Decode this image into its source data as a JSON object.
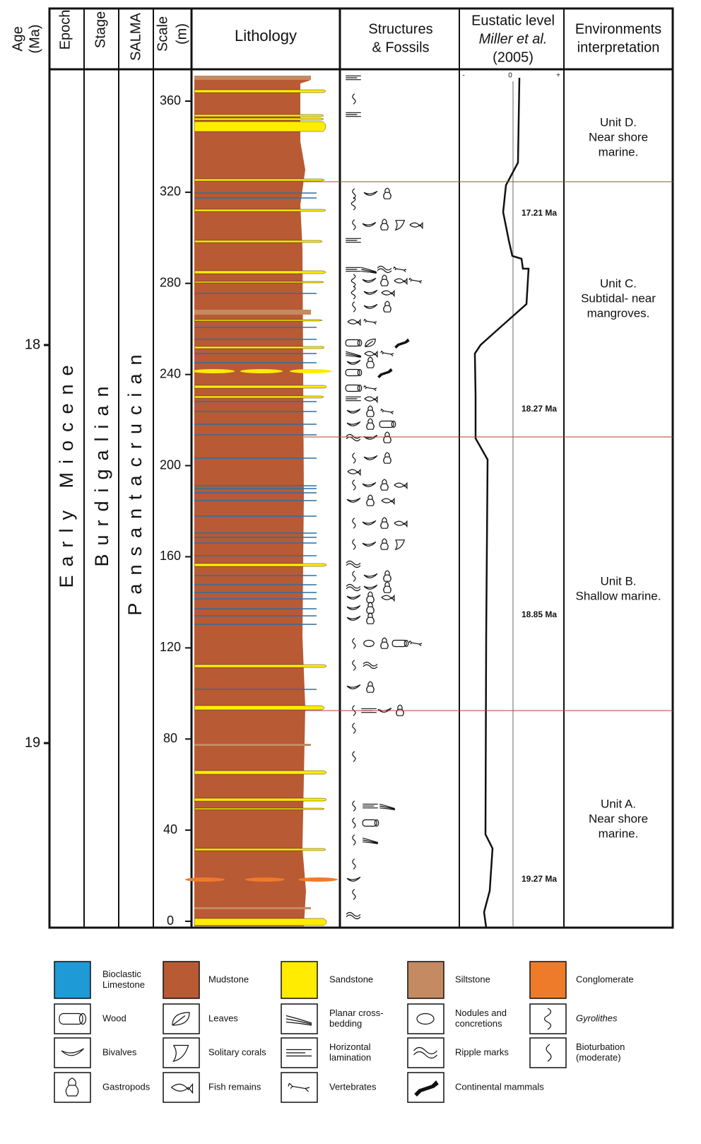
{
  "header": {
    "age": [
      "Age",
      "(Ma)"
    ],
    "epoch": "Epoch",
    "stage": "Stage",
    "salma": "SALMA",
    "scale": [
      "Scale",
      "(m)"
    ],
    "lithology": "Lithology",
    "structures": [
      "Structures",
      "& Fossils"
    ],
    "eustatic": [
      "Eustatic level",
      "Miller et al.",
      "(2005)"
    ],
    "environments": [
      "Environments",
      "interpretation"
    ]
  },
  "age_ticks": [
    "18",
    "19"
  ],
  "epoch": "Early Miocene",
  "stage": "Burdigalian",
  "salma": "Pansantacrucian",
  "scale_ticks": [
    0,
    40,
    80,
    120,
    160,
    200,
    240,
    280,
    320,
    360
  ],
  "eustatic_axis": [
    "-",
    "0",
    "+"
  ],
  "eustatic_ages": [
    "17.21 Ma",
    "18.27 Ma",
    "18.85 Ma",
    "19.27 Ma"
  ],
  "units": [
    [
      "Unit D.",
      "Near shore",
      "marine."
    ],
    [
      "Unit C.",
      "Subtidal- near",
      "mangroves."
    ],
    [
      "Unit B.",
      "Shallow marine."
    ],
    [
      "Unit A.",
      "Near shore",
      "marine."
    ]
  ],
  "legend": [
    {
      "label": [
        "Bioclastic",
        "Limestone"
      ],
      "color": "#1e9ad6"
    },
    {
      "label": [
        "Mudstone"
      ],
      "color": "#b85a34"
    },
    {
      "label": [
        "Sandstone"
      ],
      "color": "#ffec00"
    },
    {
      "label": [
        "Siltstone"
      ],
      "color": "#c48a62"
    },
    {
      "label": [
        "Conglomerate"
      ],
      "color": "#ee7b2a"
    },
    {
      "label": [
        "Wood"
      ]
    },
    {
      "label": [
        "Leaves"
      ]
    },
    {
      "label": [
        "Planar cross-",
        "bedding"
      ]
    },
    {
      "label": [
        "Nodules and",
        "concretions"
      ]
    },
    {
      "label": [
        "Gyrolithes"
      ]
    },
    {
      "label": [
        "Bivalves"
      ]
    },
    {
      "label": [
        "Solitary corals"
      ]
    },
    {
      "label": [
        "Horizontal",
        "lamination"
      ]
    },
    {
      "label": [
        "Ripple marks"
      ]
    },
    {
      "label": [
        "Bioturbation",
        "(moderate)"
      ]
    },
    {
      "label": [
        "Gastropods"
      ]
    },
    {
      "label": [
        "Fish remains"
      ]
    },
    {
      "label": [
        "Vertebrates"
      ]
    },
    {
      "label": [
        "Continental mammals"
      ]
    }
  ]
}
